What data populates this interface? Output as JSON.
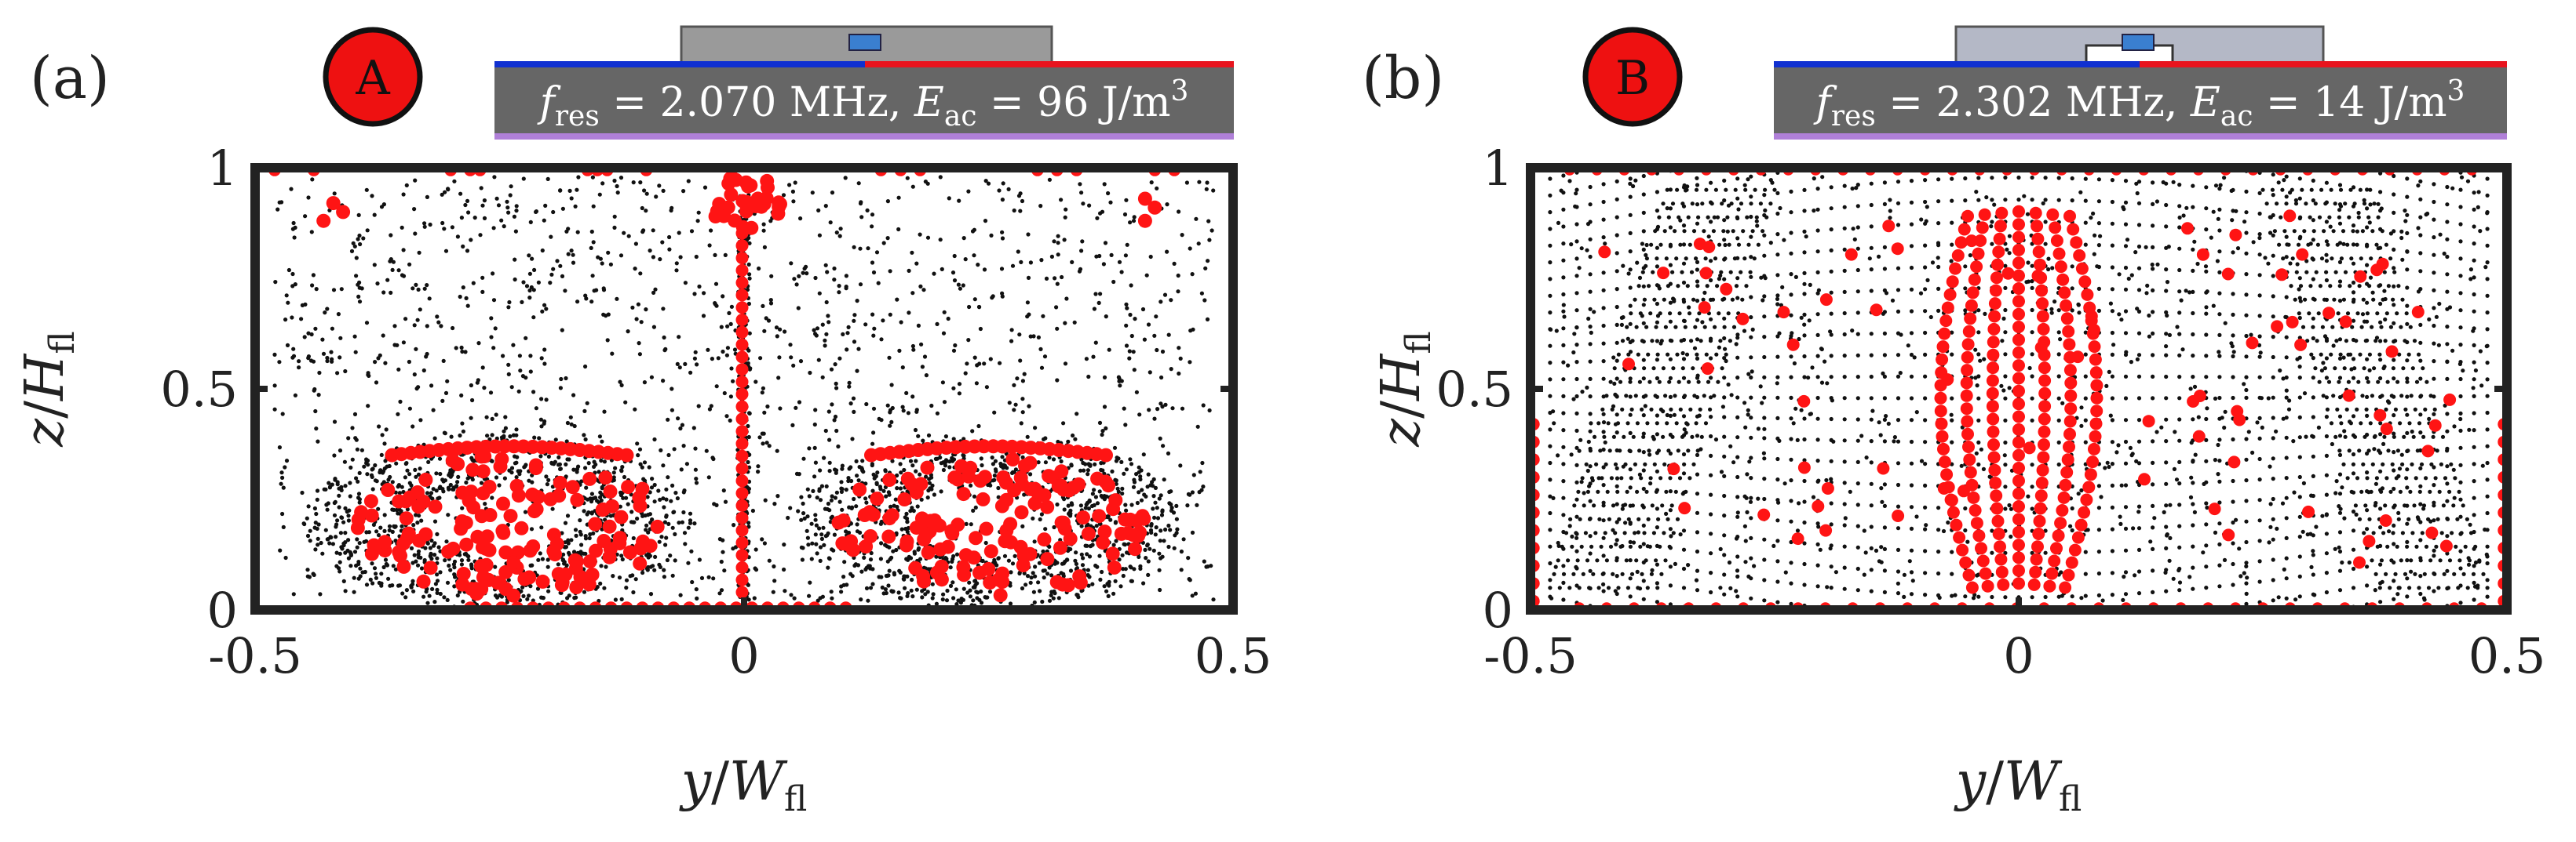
{
  "figure": {
    "colors": {
      "frame": "#222222",
      "dot_black": "#111111",
      "dot_red": "#ff1414",
      "badge_fill": "#ee1111",
      "info_box": "#666666",
      "line_blue": "#1030d0",
      "line_red": "#e8141e",
      "line_purple": "#b080d8",
      "chip_body": "#9a9a9a",
      "chip_body_b": "#b4b8c6",
      "electrode": "#3a7fd0"
    }
  },
  "chart_data": [
    {
      "type": "scatter",
      "panel_label": "(a)",
      "badge": "A",
      "info": {
        "f_symbol": "f",
        "f_sub": "res",
        "f_value": " = 2.070 MHz, ",
        "e_symbol": "E",
        "e_sub": "ac",
        "e_value": " = 96 J/m",
        "e_exp": "3"
      },
      "xlabel": {
        "var": "y",
        "sep": "/",
        "ref": "W",
        "sub": "fl"
      },
      "ylabel": {
        "var": "z",
        "sep": "/",
        "ref": "H",
        "sub": "fl"
      },
      "xlim": [
        -0.5,
        0.5
      ],
      "ylim": [
        0,
        1
      ],
      "xticks": [
        -0.5,
        0,
        0.5
      ],
      "xtick_labels": [
        "-0.5",
        "0",
        "0.5"
      ],
      "yticks": [
        0,
        0.5,
        1
      ],
      "ytick_labels": [
        "0",
        "0.5",
        "1"
      ],
      "pattern": "two-roll",
      "series": [
        {
          "name": "streaming tracer paths",
          "color": "black"
        },
        {
          "name": "particle positions",
          "color": "red"
        }
      ]
    },
    {
      "type": "scatter",
      "panel_label": "(b)",
      "badge": "B",
      "info": {
        "f_symbol": "f",
        "f_sub": "res",
        "f_value": " = 2.302 MHz, ",
        "e_symbol": "E",
        "e_sub": "ac",
        "e_value": " = 14 J/m",
        "e_exp": "3"
      },
      "xlabel": {
        "var": "y",
        "sep": "/",
        "ref": "W",
        "sub": "fl"
      },
      "ylabel": {
        "var": "z",
        "sep": "/",
        "ref": "H",
        "sub": "fl"
      },
      "xlim": [
        -0.5,
        0.5
      ],
      "ylim": [
        0,
        1
      ],
      "xticks": [
        -0.5,
        0,
        0.5
      ],
      "xtick_labels": [
        "-0.5",
        "0",
        "0.5"
      ],
      "yticks": [
        0,
        0.5,
        1
      ],
      "ytick_labels": [
        "0",
        "0.5",
        "1"
      ],
      "pattern": "central-band",
      "series": [
        {
          "name": "streaming tracer paths",
          "color": "black"
        },
        {
          "name": "particle positions",
          "color": "red"
        }
      ]
    }
  ]
}
